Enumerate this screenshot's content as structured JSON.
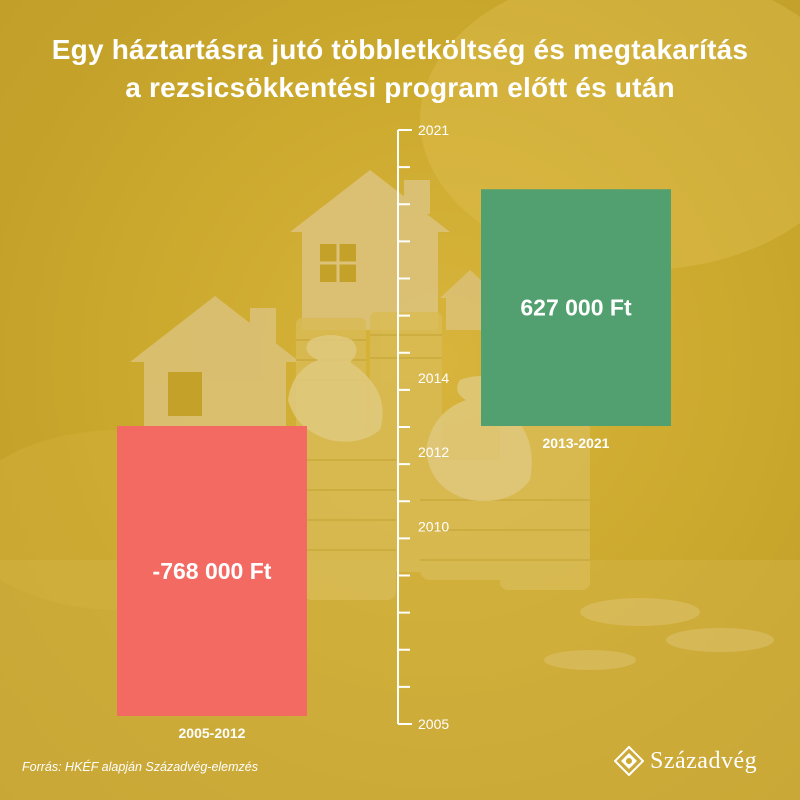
{
  "header": {
    "title_line1": "Egy háztartásra jutó többletköltség és megtakarítás",
    "title_line2": "a rezsicsökkentési program előtt és után"
  },
  "colors": {
    "background": "#ccaa2e",
    "negative_bar": "#f26a62",
    "positive_bar": "#52a06f",
    "text": "#ffffff",
    "axis": "#ffffff"
  },
  "chart_data": {
    "type": "bar",
    "categories": [
      "2005-2012",
      "2013-2021"
    ],
    "values": [
      -768000,
      627000
    ],
    "data_labels": [
      "-768 000 Ft",
      "627 000 Ft"
    ],
    "unit": "Ft",
    "timeline_axis": {
      "range": [
        2005,
        2021
      ],
      "labeled_ticks": [
        "2021",
        "2014",
        "2012",
        "2010",
        "2005"
      ]
    }
  },
  "footer": {
    "source": "Forrás: HKÉF alapján Századvég-elemzés",
    "brand": "Századvég",
    "logo_icon": "diamond-logo-icon"
  }
}
